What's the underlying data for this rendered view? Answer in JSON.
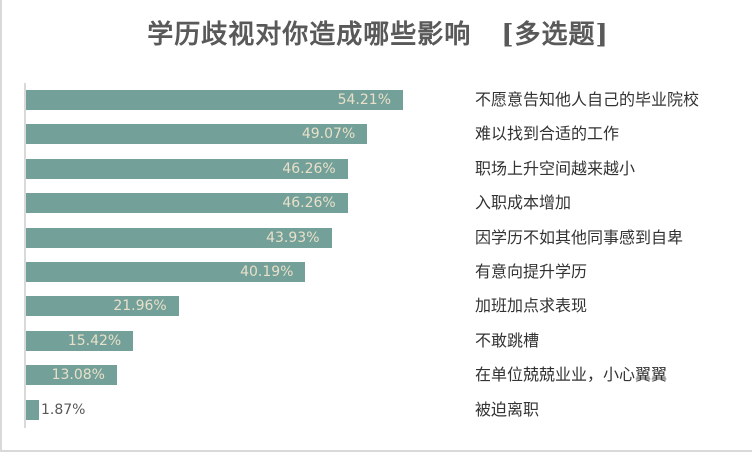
{
  "chart_data": {
    "type": "bar",
    "orientation": "horizontal",
    "title": "学历歧视对你造成哪些影响",
    "subtitle": "[多选题]",
    "categories": [
      "不愿意告知他人自己的毕业院校",
      "难以找到合适的工作",
      "职场上升空间越来越小",
      "入职成本增加",
      "因学历不如其他同事感到自卑",
      "有意向提升学历",
      "加班加点求表现",
      "不敢跳槽",
      "在单位兢兢业业，小心翼翼",
      "被迫离职"
    ],
    "values": [
      54.21,
      49.07,
      46.26,
      46.26,
      43.93,
      40.19,
      21.96,
      15.42,
      13.08,
      1.87
    ],
    "labels": [
      "54.21%",
      "49.07%",
      "46.26%",
      "46.26%",
      "43.93%",
      "40.19%",
      "21.96%",
      "15.42%",
      "13.08%",
      "1.87%"
    ],
    "xlim": [
      0,
      54.21
    ],
    "grid": false,
    "color": "#74a09a"
  }
}
